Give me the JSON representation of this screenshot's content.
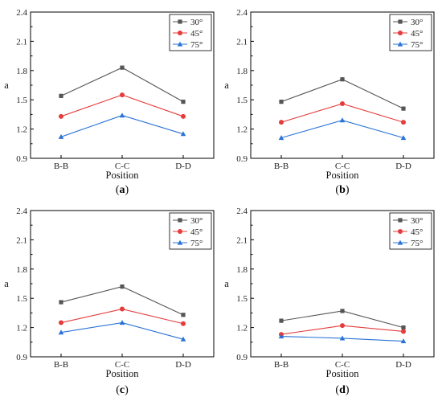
{
  "colors": {
    "30": "#555555",
    "45": "#e63b3b",
    "75": "#2a73d6"
  },
  "chart_data": [
    {
      "type": "line",
      "panel_label": "(a)",
      "categories": [
        "B-B",
        "C-C",
        "D-D"
      ],
      "xlabel": "Position",
      "ylabel": "a",
      "ylim": [
        0.9,
        2.4
      ],
      "yticks": [
        "0.9",
        "1.2",
        "1.5",
        "1.8",
        "2.1",
        "2.4"
      ],
      "legend_position": "top-right",
      "series": [
        {
          "name": "30°",
          "marker": "square",
          "values": [
            1.54,
            1.83,
            1.48
          ]
        },
        {
          "name": "45°",
          "marker": "circle",
          "values": [
            1.33,
            1.55,
            1.33
          ]
        },
        {
          "name": "75°",
          "marker": "triangle",
          "values": [
            1.12,
            1.34,
            1.15
          ]
        }
      ]
    },
    {
      "type": "line",
      "panel_label": "(b)",
      "categories": [
        "B-B",
        "C-C",
        "D-D"
      ],
      "xlabel": "Position",
      "ylabel": "a",
      "ylim": [
        0.9,
        2.4
      ],
      "yticks": [
        "0.9",
        "1.2",
        "1.5",
        "1.8",
        "2.1",
        "2.4"
      ],
      "legend_position": "top-right",
      "series": [
        {
          "name": "30°",
          "marker": "square",
          "values": [
            1.48,
            1.71,
            1.41
          ]
        },
        {
          "name": "45°",
          "marker": "circle",
          "values": [
            1.27,
            1.46,
            1.27
          ]
        },
        {
          "name": "75°",
          "marker": "triangle",
          "values": [
            1.11,
            1.29,
            1.11
          ]
        }
      ]
    },
    {
      "type": "line",
      "panel_label": "(c)",
      "categories": [
        "B-B",
        "C-C",
        "D-D"
      ],
      "xlabel": "Position",
      "ylabel": "a",
      "ylim": [
        0.9,
        2.4
      ],
      "yticks": [
        "0.9",
        "1.2",
        "1.5",
        "1.8",
        "2.1",
        "2.4"
      ],
      "legend_position": "top-right",
      "series": [
        {
          "name": "30°",
          "marker": "square",
          "values": [
            1.46,
            1.62,
            1.33
          ]
        },
        {
          "name": "45°",
          "marker": "circle",
          "values": [
            1.25,
            1.39,
            1.24
          ]
        },
        {
          "name": "75°",
          "marker": "triangle",
          "values": [
            1.15,
            1.25,
            1.08
          ]
        }
      ]
    },
    {
      "type": "line",
      "panel_label": "(d)",
      "categories": [
        "B-B",
        "C-C",
        "D-D"
      ],
      "xlabel": "Position",
      "ylabel": "a",
      "ylim": [
        0.9,
        2.4
      ],
      "yticks": [
        "0.9",
        "1.2",
        "1.5",
        "1.8",
        "2.1",
        "2.4"
      ],
      "legend_position": "top-right",
      "series": [
        {
          "name": "30°",
          "marker": "square",
          "values": [
            1.27,
            1.37,
            1.2
          ]
        },
        {
          "name": "45°",
          "marker": "circle",
          "values": [
            1.13,
            1.22,
            1.16
          ]
        },
        {
          "name": "75°",
          "marker": "triangle",
          "values": [
            1.11,
            1.09,
            1.06
          ]
        }
      ]
    }
  ]
}
